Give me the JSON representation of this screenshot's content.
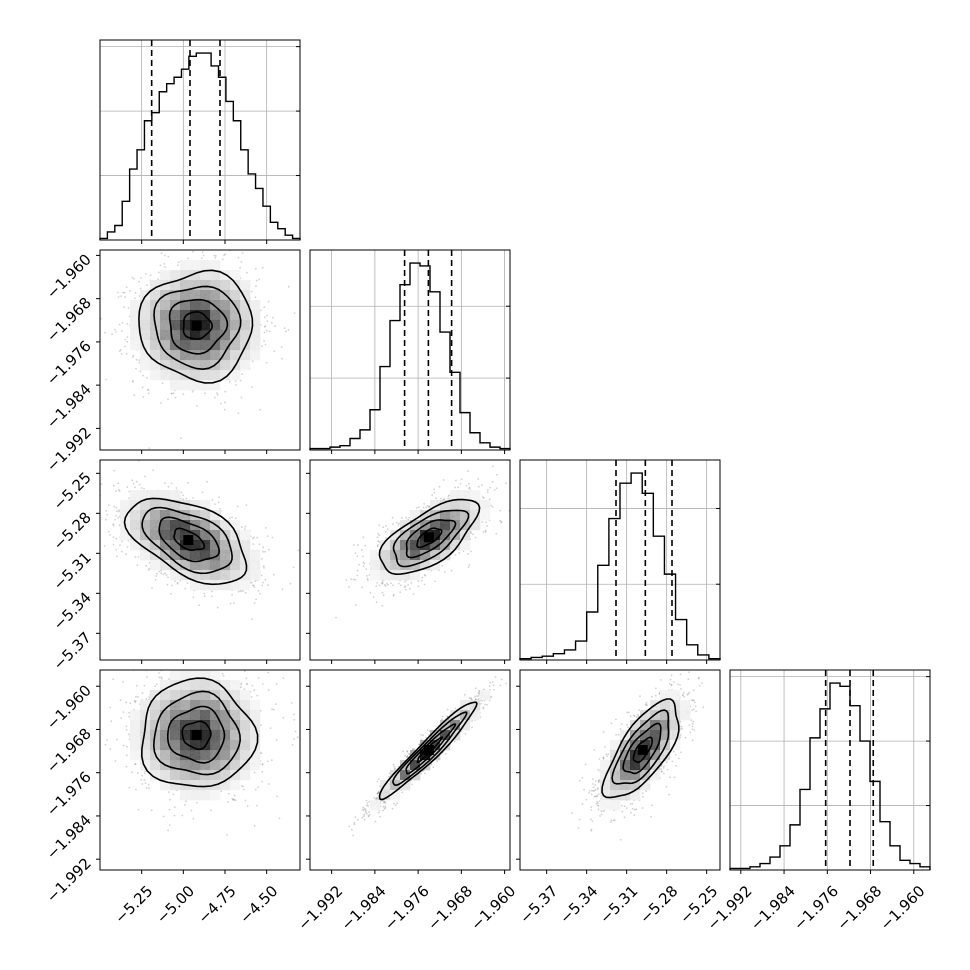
{
  "chart_data": {
    "type": "corner",
    "title": "",
    "parameters": [
      {
        "name": "",
        "range": [
          -5.5,
          -4.3
        ],
        "ticks": [
          -5.25,
          -5.0,
          -4.75,
          -4.5
        ],
        "tick_labels": [
          "−5.25",
          "−5.00",
          "−4.75",
          "−4.50"
        ]
      },
      {
        "name": "",
        "range": [
          -1.996,
          -1.959
        ],
        "ticks": [
          -1.992,
          -1.984,
          -1.976,
          -1.968,
          -1.96
        ],
        "tick_labels": [
          "−1.992",
          "−1.984",
          "−1.976",
          "−1.968",
          "−1.960"
        ]
      },
      {
        "name": "",
        "range": [
          -5.39,
          -5.24
        ],
        "ticks": [
          -5.37,
          -5.34,
          -5.31,
          -5.28,
          -5.25
        ],
        "tick_labels": [
          "−5.37",
          "−5.34",
          "−5.31",
          "−5.28",
          "−5.25"
        ]
      },
      {
        "name": "",
        "range": [
          -1.994,
          -1.957
        ],
        "ticks": [
          -1.992,
          -1.984,
          -1.976,
          -1.968,
          -1.96
        ],
        "tick_labels": [
          "−1.992",
          "−1.984",
          "−1.976",
          "−1.968",
          "−1.960"
        ]
      }
    ],
    "histograms": [
      {
        "heights": [
          1,
          5,
          9,
          24,
          44,
          56,
          74,
          79,
          92,
          97,
          101,
          106,
          114,
          116,
          116,
          108,
          101,
          86,
          74,
          56,
          41,
          32,
          21,
          11,
          7,
          3,
          1
        ],
        "quantiles": [
          -5.19,
          -4.96,
          -4.78
        ]
      },
      {
        "heights": [
          1,
          1,
          2,
          3,
          8,
          14,
          28,
          58,
          90,
          115,
          130,
          128,
          110,
          82,
          54,
          26,
          12,
          5,
          2,
          1
        ],
        "quantiles": [
          -1.9785,
          -1.9741,
          -1.9698
        ]
      },
      {
        "heights": [
          1,
          2,
          3,
          5,
          8,
          15,
          38,
          75,
          112,
          140,
          148,
          132,
          98,
          68,
          32,
          12,
          4,
          1
        ],
        "quantiles": [
          -5.318,
          -5.296,
          -5.276
        ]
      },
      {
        "heights": [
          1,
          1,
          2,
          4,
          8,
          15,
          28,
          50,
          82,
          100,
          116,
          114,
          102,
          80,
          55,
          30,
          15,
          6,
          4,
          2
        ],
        "quantiles": [
          -1.9763,
          -1.9718,
          -1.9675
        ]
      }
    ],
    "pairs": [
      {
        "row": 1,
        "col": 0,
        "mean": [
          -4.92,
          -1.973
        ],
        "sd": [
          0.17,
          0.005
        ],
        "corr": 0.0
      },
      {
        "row": 2,
        "col": 0,
        "mean": [
          -4.97,
          -5.3
        ],
        "sd": [
          0.18,
          0.016
        ],
        "corr": -0.5
      },
      {
        "row": 2,
        "col": 1,
        "mean": [
          -1.974,
          -5.298
        ],
        "sd": [
          0.0045,
          0.014
        ],
        "corr": 0.65
      },
      {
        "row": 3,
        "col": 0,
        "mean": [
          -4.92,
          -1.969
        ],
        "sd": [
          0.17,
          0.005
        ],
        "corr": 0.0
      },
      {
        "row": 3,
        "col": 1,
        "mean": [
          -1.974,
          -1.9718
        ],
        "sd": [
          0.0045,
          0.0045
        ],
        "corr": 0.96
      },
      {
        "row": 3,
        "col": 2,
        "mean": [
          -5.298,
          -1.9718
        ],
        "sd": [
          0.014,
          0.0045
        ],
        "corr": 0.7
      }
    ],
    "grid": true,
    "legend": "none"
  }
}
